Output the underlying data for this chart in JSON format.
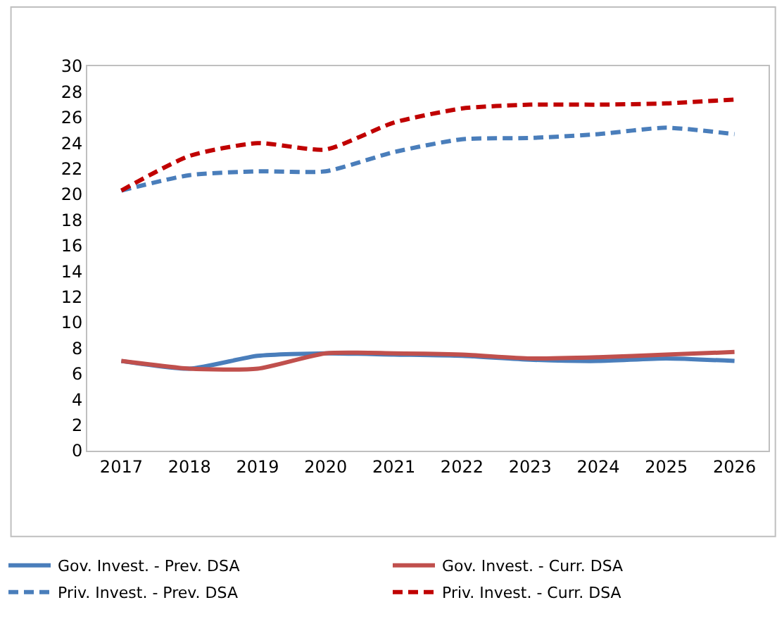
{
  "chart_data": {
    "type": "line",
    "categories": [
      "2017",
      "2018",
      "2019",
      "2020",
      "2021",
      "2022",
      "2023",
      "2024",
      "2025",
      "2026"
    ],
    "series": [
      {
        "name": "Gov. Invest. - Prev. DSA",
        "color": "#4a7ebb",
        "line_style": "solid",
        "values": [
          7.0,
          6.4,
          7.4,
          7.6,
          7.5,
          7.4,
          7.1,
          7.0,
          7.2,
          7.0
        ]
      },
      {
        "name": "Gov. Invest. - Curr. DSA",
        "color": "#c0504d",
        "line_style": "solid",
        "values": [
          7.0,
          6.4,
          6.4,
          7.6,
          7.6,
          7.5,
          7.2,
          7.3,
          7.5,
          7.7
        ]
      },
      {
        "name": "Priv. Invest. - Prev. DSA",
        "color": "#4a7ebb",
        "line_style": "dashed",
        "values": [
          20.3,
          21.5,
          21.8,
          21.8,
          23.3,
          24.3,
          24.4,
          24.7,
          25.2,
          24.7
        ]
      },
      {
        "name": "Priv. Invest. - Curr. DSA",
        "color": "#c00000",
        "line_style": "dashed",
        "values": [
          20.3,
          23.0,
          24.0,
          23.5,
          25.6,
          26.7,
          27.0,
          27.0,
          27.1,
          27.4
        ]
      }
    ],
    "ylim": [
      0,
      30
    ],
    "yticks": [
      0,
      2,
      4,
      6,
      8,
      10,
      12,
      14,
      16,
      18,
      20,
      22,
      24,
      26,
      28,
      30
    ],
    "grid": false,
    "legend": "bottom",
    "marker": "none"
  }
}
